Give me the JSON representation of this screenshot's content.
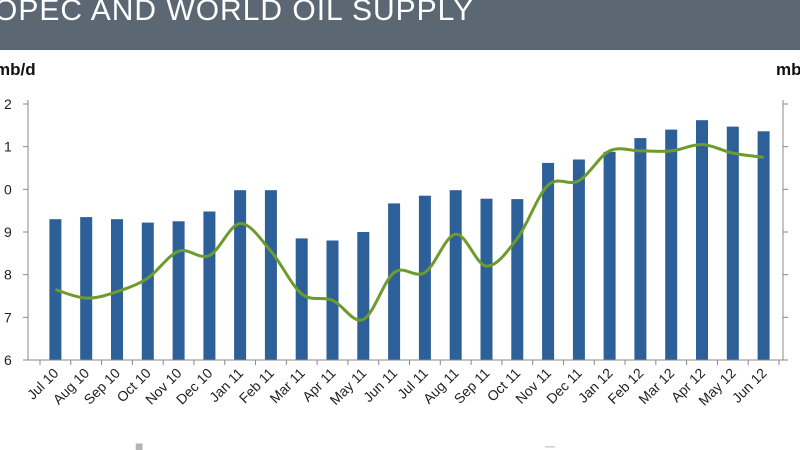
{
  "header": {
    "title": "OPEC AND WORLD OIL SUPPLY"
  },
  "colors": {
    "header_bg": "#5b6874",
    "bar": "#2d5f98",
    "line": "#6d9b2c",
    "axis": "#888888"
  },
  "chart_data": {
    "type": "bar",
    "title": "OPEC AND WORLD OIL SUPPLY",
    "categories": [
      "Jul 10",
      "Aug 10",
      "Sep 10",
      "Oct 10",
      "Nov 10",
      "Dec 10",
      "Jan 11",
      "Feb 11",
      "Mar 11",
      "Apr 11",
      "May 11",
      "Jun 11",
      "Jul 11",
      "Aug 11",
      "Sep 11",
      "Oct 11",
      "Nov 11",
      "Dec 11",
      "Jan 12",
      "Feb 12",
      "Mar 12",
      "Apr 12",
      "May 12",
      "Jun 12"
    ],
    "y_left": {
      "label": "mb/d",
      "ticks": [
        "2",
        "1",
        "0",
        "9",
        "8",
        "7",
        "6"
      ]
    },
    "y_right": {
      "label": "mb"
    },
    "series": [
      {
        "type": "bar",
        "axis": "left",
        "values": [
          29.3,
          29.35,
          29.3,
          29.22,
          29.25,
          29.48,
          29.98,
          29.98,
          28.85,
          28.8,
          29.0,
          29.67,
          29.85,
          29.98,
          29.78,
          29.77,
          30.62,
          30.7,
          30.88,
          31.2,
          31.4,
          31.62,
          31.47,
          31.36
        ]
      },
      {
        "type": "line",
        "axis": "left",
        "values": [
          27.65,
          27.45,
          27.6,
          27.92,
          28.55,
          28.45,
          29.2,
          28.55,
          27.55,
          27.4,
          26.95,
          28.05,
          28.05,
          28.95,
          28.2,
          28.85,
          30.1,
          30.2,
          30.9,
          30.9,
          30.9,
          31.05,
          30.85,
          30.75
        ]
      }
    ],
    "ylim": [
      26,
      32
    ],
    "grid": false,
    "legend": "bottom"
  }
}
